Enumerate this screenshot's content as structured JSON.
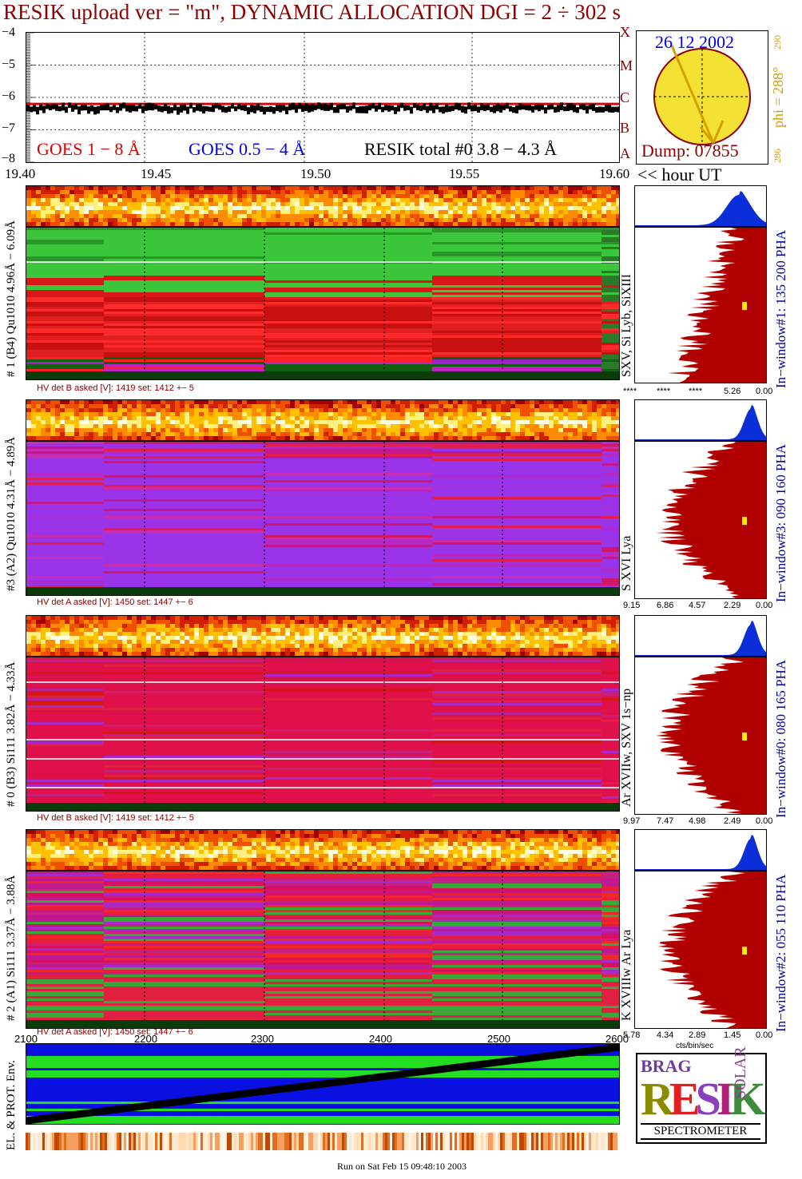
{
  "title": "RESIK upload ver = \"m\", DYNAMIC ALLOCATION  DGI =   2 ÷ 302 s",
  "goes": {
    "legend_goes18": "GOES 1 − 8 Å",
    "legend_goes054": "GOES 0.5 − 4 Å",
    "legend_resik": "RESIK total #0  3.8 − 4.3 Å",
    "yticks": [
      "−4",
      "−5",
      "−6",
      "−7",
      "−8"
    ],
    "class_letters": [
      "X",
      "M",
      "C",
      "B",
      "A"
    ],
    "colors": {
      "goes18": "#e00000",
      "goes054": "#0000ee",
      "resik": "#000000"
    }
  },
  "sun": {
    "date": "26 12 2002",
    "dump": "Dump: 07855",
    "phi_label": "phi = 288°",
    "phi_top": "290",
    "phi_bottom": "286"
  },
  "time_axis": {
    "ticks": [
      "19.40",
      "19.45",
      "19.50",
      "19.55",
      "19.60"
    ],
    "unit": "<< hour UT"
  },
  "panels": [
    {
      "id": "p1",
      "left_label": "# 1 (B4) Qu1010 4.96Å − 6.09Å",
      "line_label": "SXV, Si Lyb, SiXIII",
      "window_label": "In−window#1:  135 200 PHA",
      "hv": "HV det B asked [V]:  1419 set:  1412 +−    5",
      "pha_ticks": [
        "****",
        "****",
        "****",
        "5.26",
        "0.00"
      ]
    },
    {
      "id": "p3",
      "left_label": "#3 (A2) Qu1010  4.31Å − 4.89Å",
      "line_label": "S XVI Lya",
      "window_label": "In−window#3:  090 160 PHA",
      "hv": "HV det A asked [V]:  1450 set:  1447 +−    6",
      "pha_ticks": [
        "9.15",
        "6.86",
        "4.57",
        "2.29",
        "0.00"
      ]
    },
    {
      "id": "p0",
      "left_label": "# 0 (B3) Si111  3.82Å − 4.33Å",
      "line_label": "Ar XVIIw,  SXV 1s−np",
      "window_label": "In−window#0:  080 165 PHA",
      "hv": "HV det B asked [V]:  1419 set:  1412 +−    5",
      "pha_ticks": [
        "9.97",
        "7.47",
        "4.98",
        "2.49",
        "0.00"
      ]
    },
    {
      "id": "p2",
      "left_label": "# 2 (A1) Si111  3.37Å − 3.88Å",
      "line_label": "K XVIIIw  Ar Lya",
      "window_label": "In−window#2:  055 110 PHA",
      "hv": "HV det A asked [V]:  1450 set:  1447 +−    6",
      "pha_ticks": [
        "5.78",
        "4.34",
        "2.89",
        "1.45",
        "0.00"
      ],
      "pha_unit": "cts/bin/sec"
    }
  ],
  "env": {
    "label": "EL. & PROT. Env.",
    "ticks": [
      "2100",
      "2200",
      "2300",
      "2400",
      "2500",
      "2600"
    ]
  },
  "logo": {
    "big": "RESIK",
    "side1": "BRAG",
    "side2": "SOLAR",
    "caption": "SPECTROMETER"
  },
  "footer": "Run on Sat Feb 15 09:48:10 2003"
}
